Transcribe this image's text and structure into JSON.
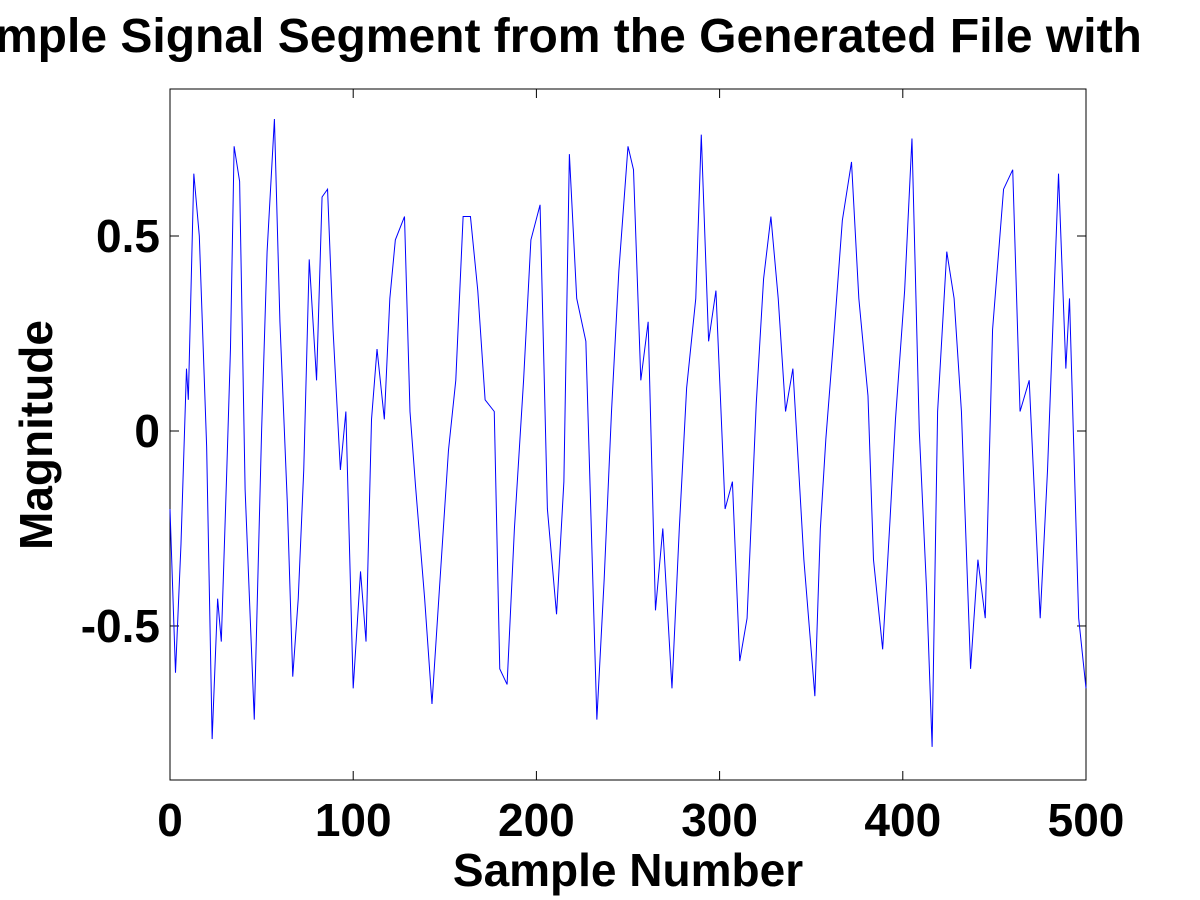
{
  "chart_data": {
    "type": "line",
    "title": "mple Signal Segment from the Generated File with",
    "xlabel": "Sample Number",
    "ylabel": "Magnitude",
    "x": [
      0,
      3,
      6,
      9,
      10,
      13,
      16,
      20,
      23,
      26,
      28,
      31,
      33,
      35,
      38,
      41,
      46,
      50,
      53,
      57,
      60,
      64,
      67,
      70,
      73,
      76,
      80,
      83,
      86,
      89,
      93,
      96,
      100,
      104,
      107,
      110,
      113,
      117,
      120,
      123,
      128,
      131,
      134,
      139,
      143,
      147,
      152,
      156,
      160,
      164,
      168,
      172,
      177,
      180,
      184,
      188,
      193,
      197,
      202,
      206,
      211,
      215,
      218,
      222,
      227,
      233,
      237,
      241,
      245,
      250,
      253,
      257,
      261,
      265,
      269,
      274,
      278,
      282,
      287,
      290,
      294,
      298,
      303,
      307,
      311,
      315,
      320,
      324,
      328,
      332,
      336,
      340,
      346,
      352,
      355,
      358,
      362,
      367,
      372,
      376,
      381,
      384,
      389,
      393,
      396,
      401,
      405,
      409,
      413,
      416,
      419,
      424,
      428,
      432,
      437,
      441,
      445,
      449,
      455,
      460,
      464,
      469,
      475,
      479,
      485,
      489,
      491,
      496,
      500
    ],
    "series": [
      {
        "color": "#0000ff",
        "values": [
          -0.2,
          -0.62,
          -0.29,
          0.16,
          0.08,
          0.66,
          0.5,
          -0.04,
          -0.79,
          -0.43,
          -0.54,
          -0.1,
          0.21,
          0.73,
          0.64,
          -0.15,
          -0.74,
          0,
          0.46,
          0.8,
          0.28,
          -0.18,
          -0.63,
          -0.43,
          -0.1,
          0.44,
          0.13,
          0.6,
          0.62,
          0.26,
          -0.1,
          0.05,
          -0.66,
          -0.36,
          -0.54,
          0.03,
          0.21,
          0.03,
          0.34,
          0.49,
          0.55,
          0.05,
          -0.14,
          -0.43,
          -0.7,
          -0.41,
          -0.05,
          0.13,
          0.55,
          0.55,
          0.36,
          0.08,
          0.05,
          -0.61,
          -0.65,
          -0.25,
          0.13,
          0.49,
          0.58,
          -0.2,
          -0.47,
          -0.13,
          0.71,
          0.34,
          0.23,
          -0.74,
          -0.38,
          0.05,
          0.41,
          0.73,
          0.67,
          0.13,
          0.28,
          -0.46,
          -0.25,
          -0.66,
          -0.25,
          0.11,
          0.34,
          0.76,
          0.23,
          0.36,
          -0.2,
          -0.13,
          -0.59,
          -0.48,
          0.07,
          0.39,
          0.55,
          0.34,
          0.05,
          0.16,
          -0.33,
          -0.68,
          -0.25,
          -0.02,
          0.22,
          0.54,
          0.69,
          0.34,
          0.09,
          -0.33,
          -0.56,
          -0.23,
          0.03,
          0.36,
          0.75,
          0,
          -0.41,
          -0.81,
          0.05,
          0.46,
          0.34,
          0.05,
          -0.61,
          -0.33,
          -0.48,
          0.26,
          0.62,
          0.67,
          0.05,
          0.13,
          -0.48,
          -0.1,
          0.66,
          0.16,
          0.34,
          -0.48,
          -0.66
        ]
      }
    ],
    "xlim": [
      0,
      500
    ],
    "xticks": [
      0,
      100,
      200,
      300,
      400,
      500
    ],
    "ylim": [
      -0.895,
      0.877
    ],
    "yticks": [
      -0.5,
      0,
      0.5
    ]
  }
}
